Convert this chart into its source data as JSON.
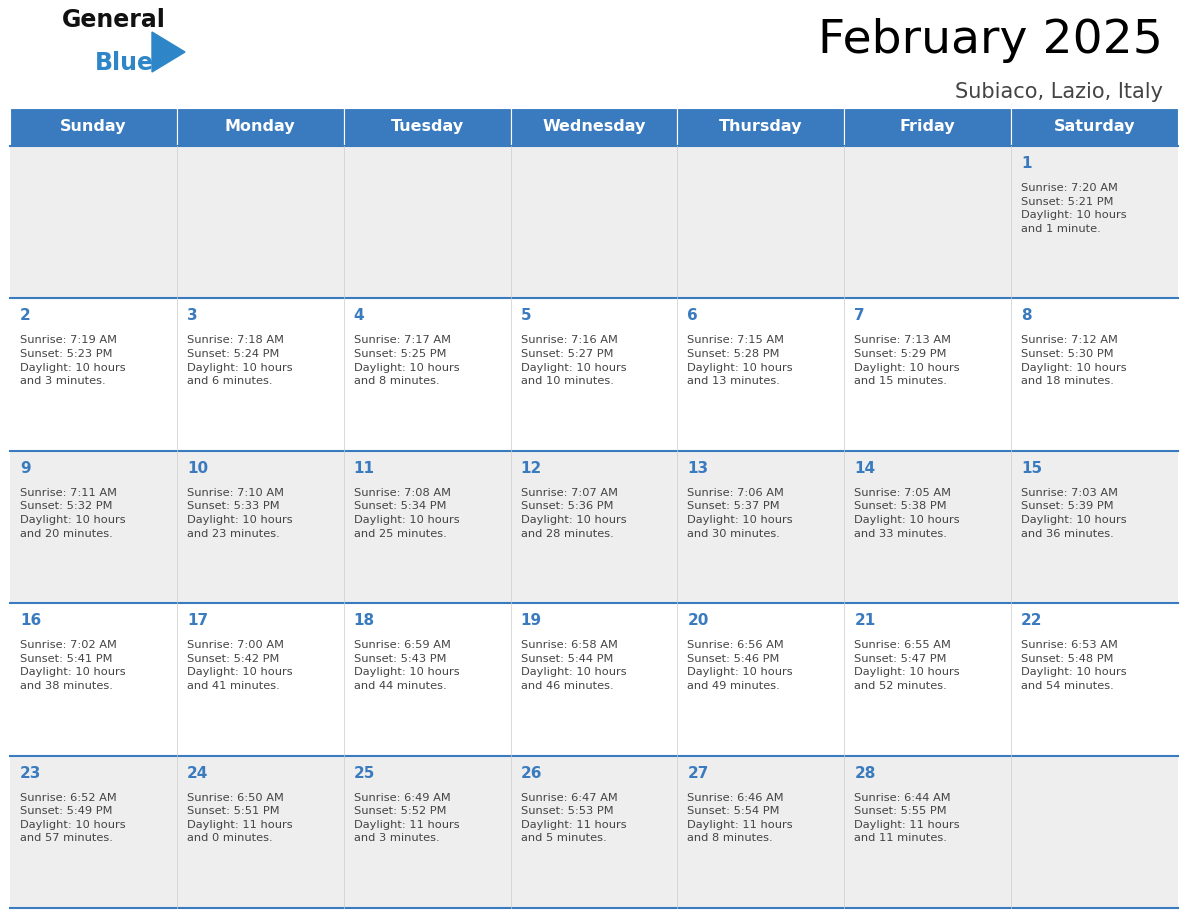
{
  "title": "February 2025",
  "subtitle": "Subiaco, Lazio, Italy",
  "days_of_week": [
    "Sunday",
    "Monday",
    "Tuesday",
    "Wednesday",
    "Thursday",
    "Friday",
    "Saturday"
  ],
  "header_bg_color": "#3a7bbf",
  "header_text_color": "#ffffff",
  "row_colors": [
    "#eeeeee",
    "#ffffff",
    "#eeeeee",
    "#ffffff",
    "#eeeeee"
  ],
  "day_number_color": "#3a7bbf",
  "info_text_color": "#444444",
  "border_color": "#3a7bbf",
  "logo_general_color": "#111111",
  "logo_blue_color": "#2e86c8",
  "calendar_data": [
    {
      "day": 1,
      "col": 6,
      "row": 0,
      "sunrise": "7:20 AM",
      "sunset": "5:21 PM",
      "daylight_h": "10 hours",
      "daylight_m": "1 minute."
    },
    {
      "day": 2,
      "col": 0,
      "row": 1,
      "sunrise": "7:19 AM",
      "sunset": "5:23 PM",
      "daylight_h": "10 hours",
      "daylight_m": "3 minutes."
    },
    {
      "day": 3,
      "col": 1,
      "row": 1,
      "sunrise": "7:18 AM",
      "sunset": "5:24 PM",
      "daylight_h": "10 hours",
      "daylight_m": "6 minutes."
    },
    {
      "day": 4,
      "col": 2,
      "row": 1,
      "sunrise": "7:17 AM",
      "sunset": "5:25 PM",
      "daylight_h": "10 hours",
      "daylight_m": "8 minutes."
    },
    {
      "day": 5,
      "col": 3,
      "row": 1,
      "sunrise": "7:16 AM",
      "sunset": "5:27 PM",
      "daylight_h": "10 hours",
      "daylight_m": "10 minutes."
    },
    {
      "day": 6,
      "col": 4,
      "row": 1,
      "sunrise": "7:15 AM",
      "sunset": "5:28 PM",
      "daylight_h": "10 hours",
      "daylight_m": "13 minutes."
    },
    {
      "day": 7,
      "col": 5,
      "row": 1,
      "sunrise": "7:13 AM",
      "sunset": "5:29 PM",
      "daylight_h": "10 hours",
      "daylight_m": "15 minutes."
    },
    {
      "day": 8,
      "col": 6,
      "row": 1,
      "sunrise": "7:12 AM",
      "sunset": "5:30 PM",
      "daylight_h": "10 hours",
      "daylight_m": "18 minutes."
    },
    {
      "day": 9,
      "col": 0,
      "row": 2,
      "sunrise": "7:11 AM",
      "sunset": "5:32 PM",
      "daylight_h": "10 hours",
      "daylight_m": "20 minutes."
    },
    {
      "day": 10,
      "col": 1,
      "row": 2,
      "sunrise": "7:10 AM",
      "sunset": "5:33 PM",
      "daylight_h": "10 hours",
      "daylight_m": "23 minutes."
    },
    {
      "day": 11,
      "col": 2,
      "row": 2,
      "sunrise": "7:08 AM",
      "sunset": "5:34 PM",
      "daylight_h": "10 hours",
      "daylight_m": "25 minutes."
    },
    {
      "day": 12,
      "col": 3,
      "row": 2,
      "sunrise": "7:07 AM",
      "sunset": "5:36 PM",
      "daylight_h": "10 hours",
      "daylight_m": "28 minutes."
    },
    {
      "day": 13,
      "col": 4,
      "row": 2,
      "sunrise": "7:06 AM",
      "sunset": "5:37 PM",
      "daylight_h": "10 hours",
      "daylight_m": "30 minutes."
    },
    {
      "day": 14,
      "col": 5,
      "row": 2,
      "sunrise": "7:05 AM",
      "sunset": "5:38 PM",
      "daylight_h": "10 hours",
      "daylight_m": "33 minutes."
    },
    {
      "day": 15,
      "col": 6,
      "row": 2,
      "sunrise": "7:03 AM",
      "sunset": "5:39 PM",
      "daylight_h": "10 hours",
      "daylight_m": "36 minutes."
    },
    {
      "day": 16,
      "col": 0,
      "row": 3,
      "sunrise": "7:02 AM",
      "sunset": "5:41 PM",
      "daylight_h": "10 hours",
      "daylight_m": "38 minutes."
    },
    {
      "day": 17,
      "col": 1,
      "row": 3,
      "sunrise": "7:00 AM",
      "sunset": "5:42 PM",
      "daylight_h": "10 hours",
      "daylight_m": "41 minutes."
    },
    {
      "day": 18,
      "col": 2,
      "row": 3,
      "sunrise": "6:59 AM",
      "sunset": "5:43 PM",
      "daylight_h": "10 hours",
      "daylight_m": "44 minutes."
    },
    {
      "day": 19,
      "col": 3,
      "row": 3,
      "sunrise": "6:58 AM",
      "sunset": "5:44 PM",
      "daylight_h": "10 hours",
      "daylight_m": "46 minutes."
    },
    {
      "day": 20,
      "col": 4,
      "row": 3,
      "sunrise": "6:56 AM",
      "sunset": "5:46 PM",
      "daylight_h": "10 hours",
      "daylight_m": "49 minutes."
    },
    {
      "day": 21,
      "col": 5,
      "row": 3,
      "sunrise": "6:55 AM",
      "sunset": "5:47 PM",
      "daylight_h": "10 hours",
      "daylight_m": "52 minutes."
    },
    {
      "day": 22,
      "col": 6,
      "row": 3,
      "sunrise": "6:53 AM",
      "sunset": "5:48 PM",
      "daylight_h": "10 hours",
      "daylight_m": "54 minutes."
    },
    {
      "day": 23,
      "col": 0,
      "row": 4,
      "sunrise": "6:52 AM",
      "sunset": "5:49 PM",
      "daylight_h": "10 hours",
      "daylight_m": "57 minutes."
    },
    {
      "day": 24,
      "col": 1,
      "row": 4,
      "sunrise": "6:50 AM",
      "sunset": "5:51 PM",
      "daylight_h": "11 hours",
      "daylight_m": "0 minutes."
    },
    {
      "day": 25,
      "col": 2,
      "row": 4,
      "sunrise": "6:49 AM",
      "sunset": "5:52 PM",
      "daylight_h": "11 hours",
      "daylight_m": "3 minutes."
    },
    {
      "day": 26,
      "col": 3,
      "row": 4,
      "sunrise": "6:47 AM",
      "sunset": "5:53 PM",
      "daylight_h": "11 hours",
      "daylight_m": "5 minutes."
    },
    {
      "day": 27,
      "col": 4,
      "row": 4,
      "sunrise": "6:46 AM",
      "sunset": "5:54 PM",
      "daylight_h": "11 hours",
      "daylight_m": "8 minutes."
    },
    {
      "day": 28,
      "col": 5,
      "row": 4,
      "sunrise": "6:44 AM",
      "sunset": "5:55 PM",
      "daylight_h": "11 hours",
      "daylight_m": "11 minutes."
    }
  ],
  "fig_width": 11.88,
  "fig_height": 9.18,
  "dpi": 100
}
